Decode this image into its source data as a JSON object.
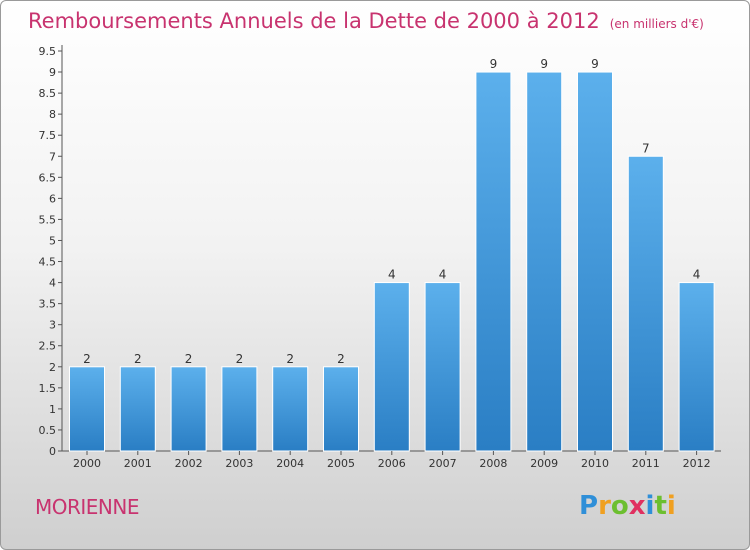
{
  "chart_data": {
    "type": "bar",
    "title": "Remboursements Annuels de la Dette de 2000 à 2012",
    "unit": "(en milliers d'€)",
    "categories": [
      "2000",
      "2001",
      "2002",
      "2003",
      "2004",
      "2005",
      "2006",
      "2007",
      "2008",
      "2009",
      "2010",
      "2011",
      "2012"
    ],
    "values": [
      2,
      2,
      2,
      2,
      2,
      2,
      4,
      4,
      9,
      9,
      9,
      7,
      4
    ],
    "data_labels": [
      "2",
      "2",
      "2",
      "2",
      "2",
      "2",
      "4",
      "4",
      "9",
      "9",
      "9",
      "7",
      "4"
    ],
    "ylim": [
      0,
      9.5
    ],
    "yticks": [
      0,
      0.5,
      1,
      1.5,
      2,
      2.5,
      3,
      3.5,
      4,
      4.5,
      5,
      5.5,
      6,
      6.5,
      7,
      7.5,
      8,
      8.5,
      9,
      9.5
    ],
    "ytick_labels": [
      "0",
      "0.5",
      "1",
      "1.5",
      "2",
      "2.5",
      "3",
      "3.5",
      "4",
      "4.5",
      "5",
      "5.5",
      "6",
      "6.5",
      "7",
      "7.5",
      "8",
      "8.5",
      "9",
      "9.5"
    ],
    "grid": false,
    "bar_color": "#4a9fe0",
    "title_color": "#c8336f"
  },
  "place": "MORIENNE",
  "logo_text": [
    "P",
    "r",
    "o",
    "x",
    "i",
    "t",
    "i"
  ]
}
